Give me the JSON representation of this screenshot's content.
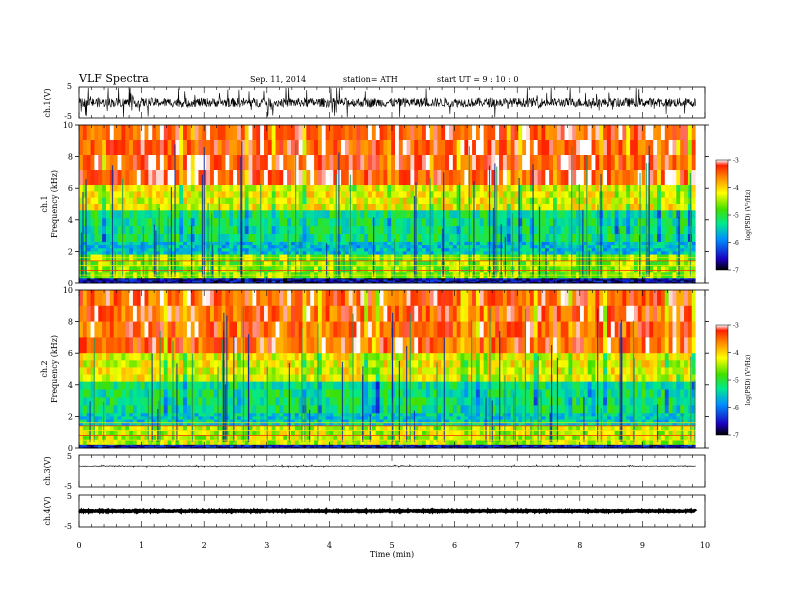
{
  "header": {
    "title": "VLF  Spectra",
    "date": "Sep. 11, 2014",
    "station": "station= ATH",
    "start": "start  UT  =   9  : 10 : 0"
  },
  "chart_data": [
    {
      "type": "line",
      "name": "ch1-waveform",
      "ylabel": "ch.1(V)",
      "ylim": [
        -5,
        5
      ],
      "yticks": [
        "5",
        "-5"
      ],
      "xlim": [
        0,
        10
      ],
      "data_end_min": 9.85,
      "baseline_v": 0.0,
      "amplitude_v": 2.5
    },
    {
      "type": "heatmap",
      "name": "ch1-spectrogram",
      "channel_label": "ch.1",
      "ylabel": "Frequency  (kHz)",
      "ylim": [
        0,
        10
      ],
      "yticks": [
        "0",
        "2",
        "4",
        "6",
        "8",
        "10"
      ],
      "xlim": [
        0,
        10
      ],
      "data_end_min": 9.85,
      "colorbar": {
        "label": "log(PSD) (V²/Hz)",
        "range": [
          -7,
          -3
        ],
        "ticks": [
          "-3",
          "-4",
          "-5",
          "-6",
          "-7"
        ]
      },
      "bands_khz": [
        {
          "from": 10.0,
          "to": 6.2,
          "level": -3.3
        },
        {
          "from": 6.2,
          "to": 4.6,
          "level": -4.2
        },
        {
          "from": 4.6,
          "to": 2.6,
          "level": -5.2
        },
        {
          "from": 2.6,
          "to": 1.8,
          "level": -5.6
        },
        {
          "from": 1.8,
          "to": 0.3,
          "level": -4.6
        },
        {
          "from": 0.3,
          "to": 0.0,
          "level": -6.6
        }
      ]
    },
    {
      "type": "heatmap",
      "name": "ch2-spectrogram",
      "channel_label": "ch.2",
      "ylabel": "Frequency  (kHz)",
      "ylim": [
        0,
        10
      ],
      "yticks": [
        "0",
        "2",
        "4",
        "6",
        "8",
        "10"
      ],
      "xlim": [
        0,
        10
      ],
      "data_end_min": 9.85,
      "colorbar": {
        "label": "log(PSD) (V²/Hz)",
        "range": [
          -7,
          -3
        ],
        "ticks": [
          "-3",
          "-4",
          "-5",
          "-6",
          "-7"
        ]
      },
      "bands_khz": [
        {
          "from": 10.0,
          "to": 6.0,
          "level": -3.4
        },
        {
          "from": 6.0,
          "to": 4.2,
          "level": -4.2
        },
        {
          "from": 4.2,
          "to": 2.2,
          "level": -5.2
        },
        {
          "from": 2.2,
          "to": 1.4,
          "level": -5.5
        },
        {
          "from": 1.4,
          "to": 0.2,
          "level": -4.4
        },
        {
          "from": 0.2,
          "to": 0.0,
          "level": -6.5
        }
      ]
    },
    {
      "type": "line",
      "name": "ch3-waveform",
      "ylabel": "ch.3(V)",
      "ylim": [
        -5,
        5
      ],
      "yticks": [
        "5",
        "-5"
      ],
      "xlim": [
        0,
        10
      ],
      "data_end_min": 9.85,
      "baseline_v": 1.5,
      "amplitude_v": 0.15
    },
    {
      "type": "line",
      "name": "ch4-waveform",
      "ylabel": "ch.4(V)",
      "ylim": [
        -5,
        5
      ],
      "yticks": [
        "5",
        "-5"
      ],
      "xlim": [
        0,
        10
      ],
      "data_end_min": 9.85,
      "baseline_v": 0.0,
      "amplitude_v": 0.15
    }
  ],
  "xaxis": {
    "label": "Time  (min)",
    "ticks": [
      "0",
      "1",
      "2",
      "3",
      "4",
      "5",
      "6",
      "7",
      "8",
      "9",
      "10"
    ]
  }
}
